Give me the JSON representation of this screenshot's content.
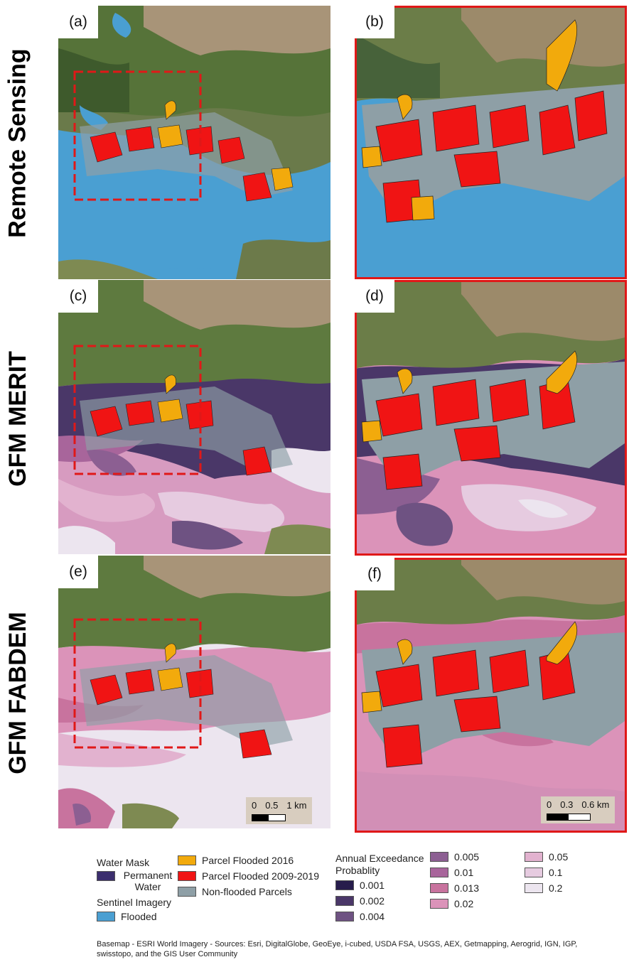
{
  "row_labels": [
    "Remote Sensing",
    "GFM MERIT",
    "GFM FABDEM"
  ],
  "panel_labels": [
    "(a)",
    "(b)",
    "(c)",
    "(d)",
    "(e)",
    "(f)"
  ],
  "scalebar_overview": [
    "0",
    "0.5",
    "1 km"
  ],
  "scalebar_zoom": [
    "0",
    "0.3",
    "0.6 km"
  ],
  "legend": {
    "water_mask_title": "Water Mask",
    "permanent_water": "Permanent Water",
    "sentinel_title": "Sentinel Imagery",
    "flooded": "Flooded",
    "parcel_2016": "Parcel Flooded 2016",
    "parcel_2009": "Parcel Flooded 2009-2019",
    "non_flooded": "Non-flooded Parcels",
    "aep_title": "Annual Exceedance Probablity",
    "aep_values": [
      "0.001",
      "0.002",
      "0.004",
      "0.005",
      "0.01",
      "0.013",
      "0.02",
      "0.05",
      "0.1",
      "0.2"
    ]
  },
  "colors": {
    "permanent_water": "#3b2e6e",
    "flooded": "#4a9fd2",
    "parcel_2016": "#f2aa0c",
    "parcel_2009": "#f01414",
    "non_flooded": "#8e9fa6",
    "aep": [
      "#271c4c",
      "#4a3768",
      "#6e5282",
      "#8c5f92",
      "#a8659b",
      "#c8739e",
      "#db93b9",
      "#e2b2cf",
      "#e6cbe0",
      "#ece5ef"
    ],
    "frame_red": "#e01818"
  },
  "source_text": "Basemap - ESRI World Imagery - Sources: Esri, DigitalGlobe, GeoEye, i-cubed, USDA FSA, USGS, AEX, Getmapping, Aerogrid, IGN, IGP, swisstopo, and the GIS User Community"
}
